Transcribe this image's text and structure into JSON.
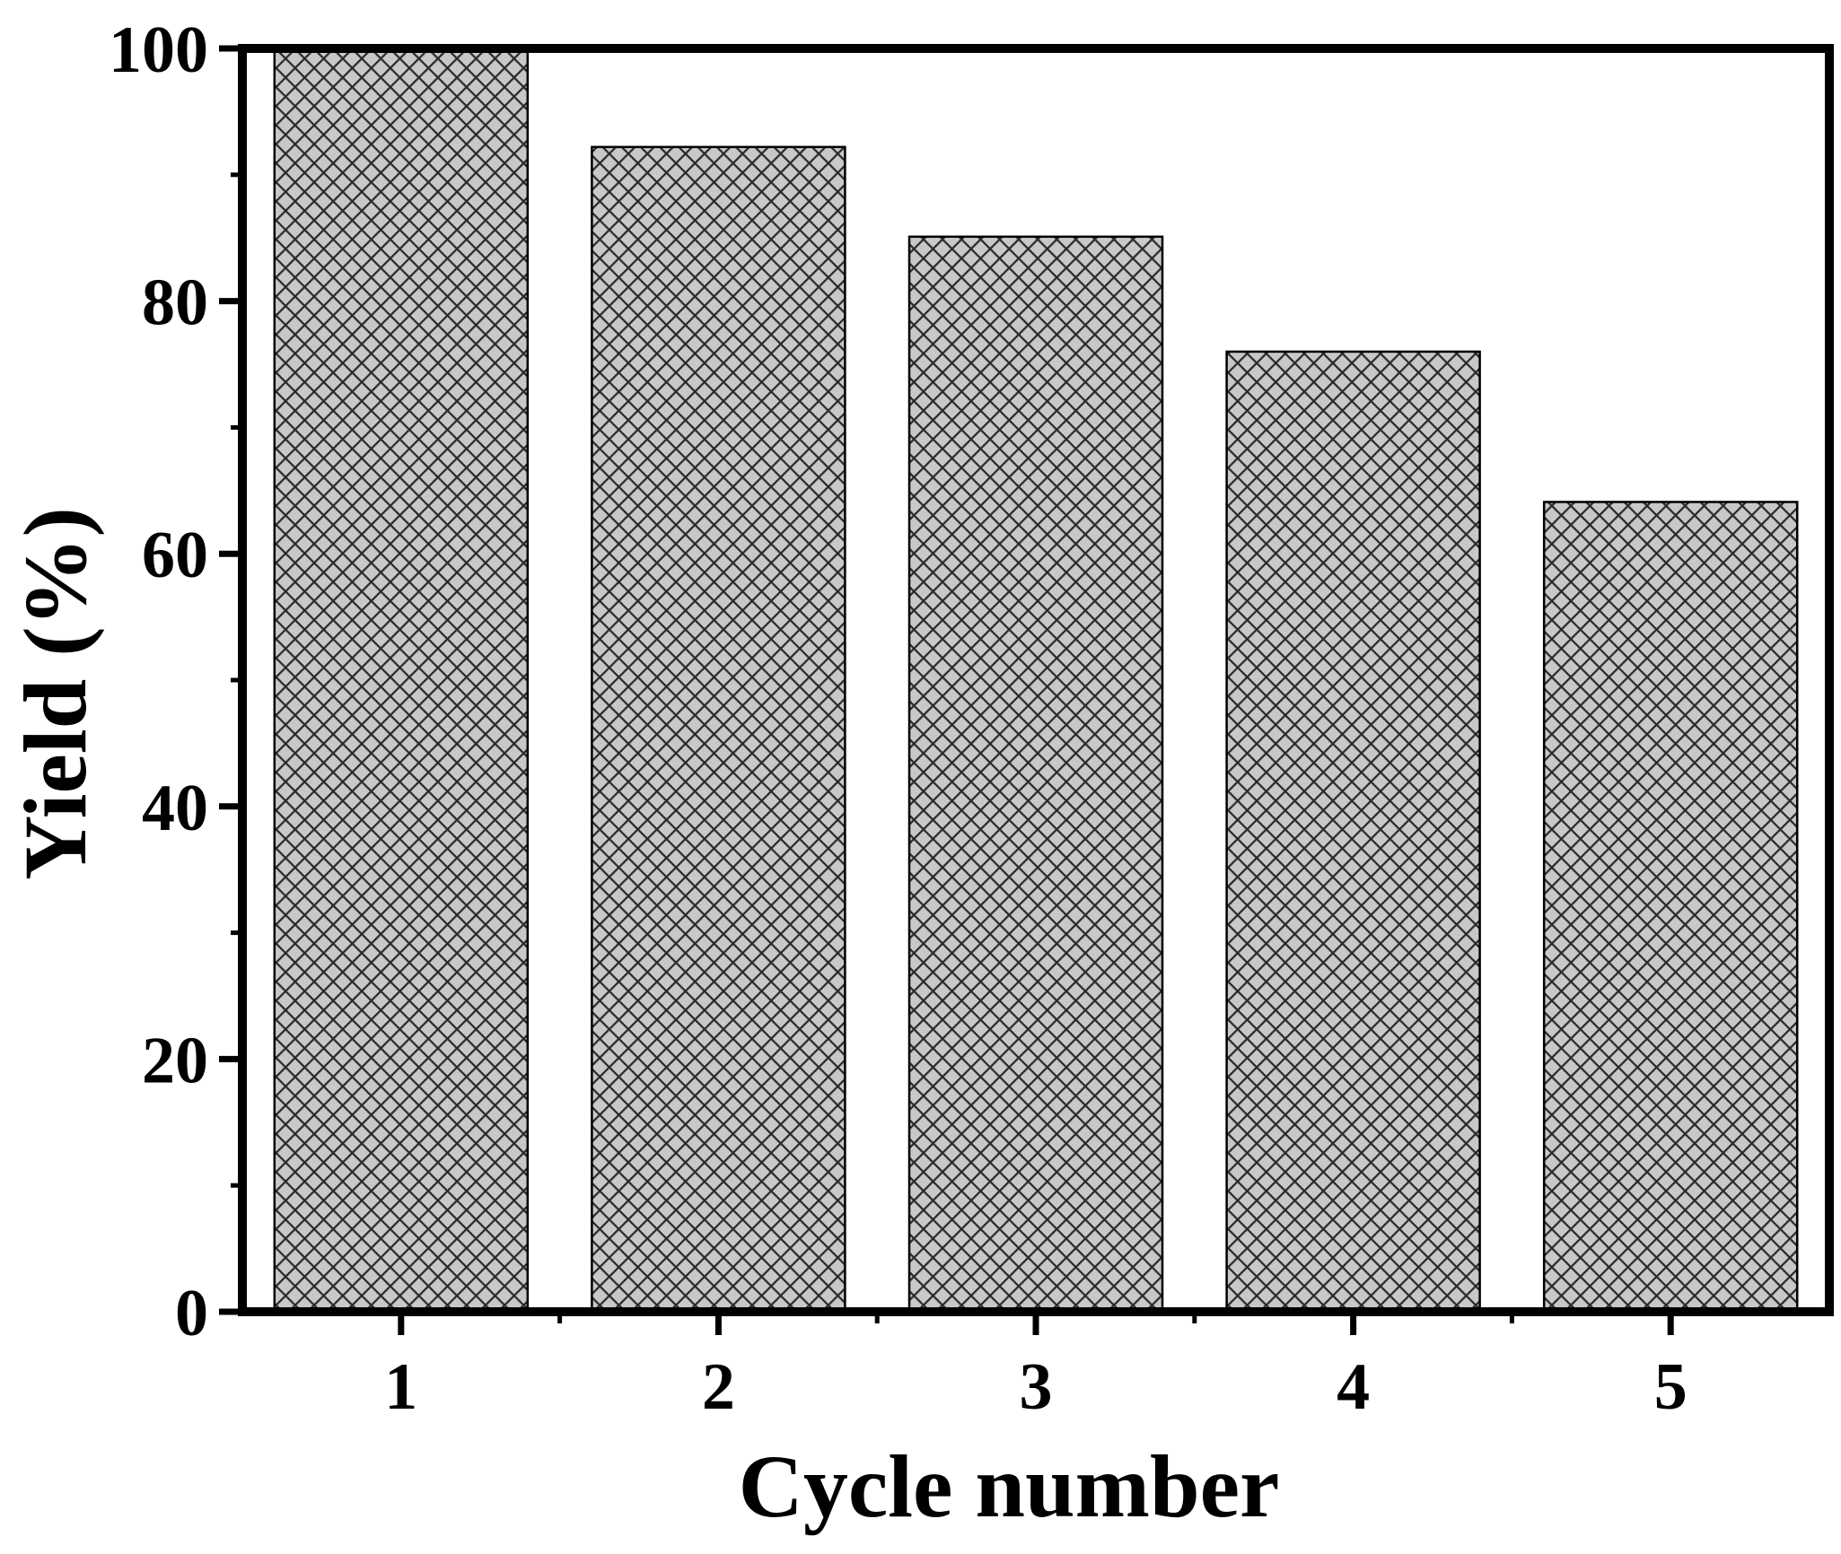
{
  "chart_data": {
    "type": "bar",
    "categories": [
      "1",
      "2",
      "3",
      "4",
      "5"
    ],
    "values": [
      100,
      92.2,
      85.1,
      76.0,
      64.1
    ],
    "xlabel": "Cycle number",
    "ylabel": "Yield (%)",
    "ylim": [
      0,
      100
    ],
    "yticks": [
      "0",
      "20",
      "40",
      "60",
      "80",
      "100"
    ],
    "grid": false,
    "legend": "none",
    "bar_fill": "#c8c8c8",
    "bar_hatch_color": "#2a2a2a",
    "bar_edge_color": "#000000",
    "hatch": "crosshatch"
  }
}
